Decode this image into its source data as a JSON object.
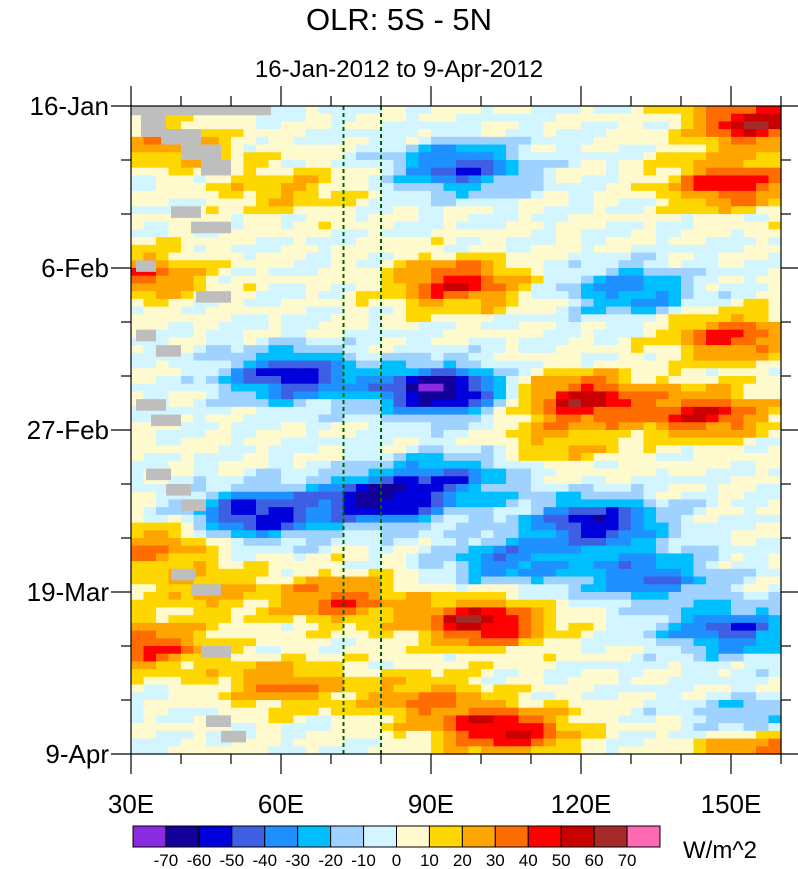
{
  "chart_data": {
    "type": "heatmap",
    "title": "OLR: 5S - 5N",
    "subtitle": "16-Jan-2012 to 9-Apr-2012",
    "x_axis": {
      "label": "",
      "range": [
        30,
        160
      ],
      "tick_values": [
        30,
        60,
        90,
        120,
        150
      ],
      "tick_labels": [
        "30E",
        "60E",
        "90E",
        "120E",
        "150E"
      ]
    },
    "y_axis": {
      "label": "",
      "range_days": [
        0,
        84
      ],
      "tick_days": [
        0,
        21,
        42,
        63,
        84
      ],
      "tick_labels": [
        "16-Jan",
        "6-Feb",
        "27-Feb",
        "19-Mar",
        "9-Apr"
      ]
    },
    "reference_lines_lon": [
      72.5,
      80
    ],
    "colorbar": {
      "unit": "W/m^2",
      "levels": [
        "-70",
        "-60",
        "-50",
        "-40",
        "-30",
        "-20",
        "-10",
        "0",
        "10",
        "20",
        "30",
        "40",
        "50",
        "60",
        "70"
      ],
      "colors": [
        "#8a2be2",
        "#13009a",
        "#0000dc",
        "#3d5fe4",
        "#1e90ff",
        "#00bfff",
        "#a0d2ff",
        "#d2f5ff",
        "#fffacd",
        "#ffd700",
        "#ffa500",
        "#ff6d00",
        "#ff0000",
        "#c80000",
        "#a52a2a",
        "#ff69b4"
      ]
    },
    "missing_color": "#bebebe",
    "anomaly_features": [
      {
        "day": 2,
        "lon": 155,
        "value": 55
      },
      {
        "day": 5,
        "lon": 38,
        "value": 25
      },
      {
        "day": 8,
        "lon": 96,
        "value": -45
      },
      {
        "day": 10,
        "lon": 150,
        "value": 45
      },
      {
        "day": 11,
        "lon": 60,
        "value": 20
      },
      {
        "day": 22,
        "lon": 32,
        "value": 35
      },
      {
        "day": 23,
        "lon": 95,
        "value": 45
      },
      {
        "day": 24,
        "lon": 130,
        "value": -35
      },
      {
        "day": 30,
        "lon": 150,
        "value": 40
      },
      {
        "day": 35,
        "lon": 62,
        "value": -55
      },
      {
        "day": 37,
        "lon": 92,
        "value": -70
      },
      {
        "day": 38,
        "lon": 120,
        "value": 50
      },
      {
        "day": 40,
        "lon": 145,
        "value": 45
      },
      {
        "day": 44,
        "lon": 115,
        "value": 20
      },
      {
        "day": 48,
        "lon": 95,
        "value": -35
      },
      {
        "day": 51,
        "lon": 80,
        "value": -60
      },
      {
        "day": 53,
        "lon": 55,
        "value": -55
      },
      {
        "day": 54,
        "lon": 123,
        "value": -55
      },
      {
        "day": 57,
        "lon": 35,
        "value": 30
      },
      {
        "day": 59,
        "lon": 106,
        "value": -35
      },
      {
        "day": 61,
        "lon": 133,
        "value": -40
      },
      {
        "day": 63,
        "lon": 45,
        "value": 20
      },
      {
        "day": 64,
        "lon": 72,
        "value": 35
      },
      {
        "day": 67,
        "lon": 100,
        "value": 55
      },
      {
        "day": 68,
        "lon": 150,
        "value": -45
      },
      {
        "day": 70,
        "lon": 33,
        "value": 40
      },
      {
        "day": 75,
        "lon": 60,
        "value": 30
      },
      {
        "day": 77,
        "lon": 88,
        "value": 30
      },
      {
        "day": 80,
        "lon": 155,
        "value": -30
      },
      {
        "day": 81,
        "lon": 105,
        "value": 50
      },
      {
        "day": 83,
        "lon": 157,
        "value": 45
      }
    ]
  }
}
